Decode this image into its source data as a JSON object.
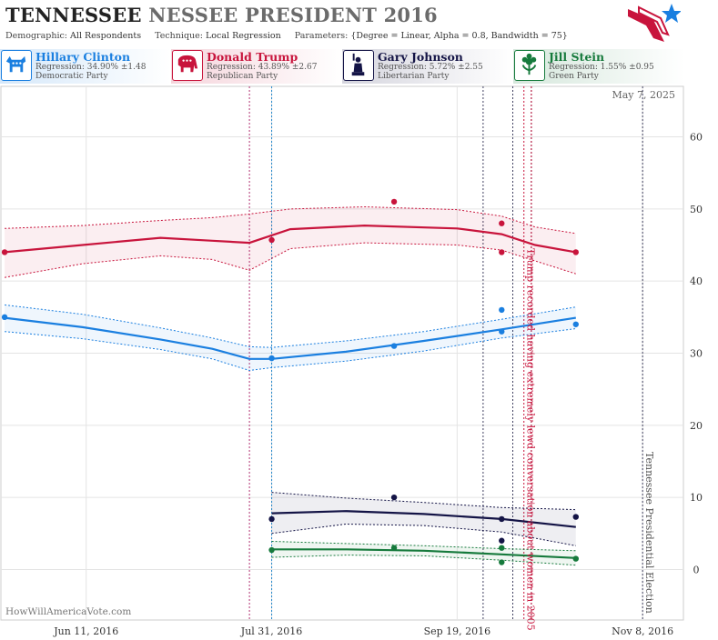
{
  "header": {
    "title_main": "TENNESSEE",
    "title_rest": "NESSEE PRESIDENT 2016",
    "demographic_label": "Demographic:",
    "demographic_value": "All Respondents",
    "technique_label": "Technique:",
    "technique_value": "Local Regression",
    "parameters_label": "Parameters:",
    "parameters_value": "{Degree = Linear, Alpha = 0.8, Bandwidth = 75}"
  },
  "candidates": [
    {
      "name": "Hillary Clinton",
      "regression": "Regression: 34.90% ±1.48",
      "party": "Democratic Party",
      "color": "#1a7fe0",
      "icon": "donkey-icon"
    },
    {
      "name": "Donald Trump",
      "regression": "Regression: 43.89% ±2.67",
      "party": "Republican Party",
      "color": "#c8143c",
      "icon": "elephant-icon"
    },
    {
      "name": "Gary Johnson",
      "regression": "Regression: 5.72% ±2.55",
      "party": "Libertarian Party",
      "color": "#141446",
      "icon": "liberty-icon"
    },
    {
      "name": "Jill Stein",
      "regression": "Regression: 1.55% ±0.95",
      "party": "Green Party",
      "color": "#167a3c",
      "icon": "flower-icon"
    }
  ],
  "watermark": "HowWillAmericaVote.com",
  "chart_data": {
    "type": "line",
    "date_label": "May 7, 2025",
    "x_ticks": [
      "Jun 11, 2016",
      "Jul 31, 2016",
      "Sep 19, 2016",
      "Nov 8, 2016"
    ],
    "x_ticks_dates": [
      "2016-06-11",
      "2016-07-31",
      "2016-09-19",
      "2016-11-08"
    ],
    "xlim": [
      "2016-05-19",
      "2016-11-19"
    ],
    "y_ticks": [
      0,
      10,
      20,
      30,
      40,
      50,
      60
    ],
    "ylim": [
      -7,
      67
    ],
    "y_axis_side": "right",
    "grid": true,
    "annotations": [
      {
        "text": "Trump recorded having extremely lewd conversation about women in 2005",
        "date": "2016-10-07",
        "color": "#c8143c"
      },
      {
        "text": "Tennessee Presidential Election",
        "date": "2016-11-08",
        "color": "#555555"
      }
    ],
    "event_lines": [
      {
        "date": "2016-07-25",
        "color": "#b03070"
      },
      {
        "date": "2016-07-31",
        "color": "#2288cc"
      },
      {
        "date": "2016-09-26",
        "color": "#404060"
      },
      {
        "date": "2016-10-04",
        "color": "#404060"
      },
      {
        "date": "2016-10-07",
        "color": "#c8143c"
      },
      {
        "date": "2016-10-09",
        "color": "#404060"
      },
      {
        "date": "2016-10-09",
        "color": "#c8143c"
      },
      {
        "date": "2016-11-08",
        "color": "#404060"
      }
    ],
    "series": [
      {
        "name": "Hillary Clinton",
        "color": "#1a7fe0",
        "points": [
          [
            "2016-05-20",
            35
          ],
          [
            "2016-07-31",
            29.3
          ],
          [
            "2016-09-02",
            31
          ],
          [
            "2016-10-01",
            36
          ],
          [
            "2016-10-01",
            33
          ],
          [
            "2016-10-21",
            34
          ]
        ],
        "trend": [
          [
            "2016-05-20",
            34.9
          ],
          [
            "2016-06-10",
            33.6
          ],
          [
            "2016-07-01",
            31.9
          ],
          [
            "2016-07-15",
            30.6
          ],
          [
            "2016-07-25",
            29.2
          ],
          [
            "2016-07-31",
            29.2
          ],
          [
            "2016-08-20",
            30.2
          ],
          [
            "2016-09-10",
            31.7
          ],
          [
            "2016-10-01",
            33.3
          ],
          [
            "2016-10-21",
            34.9
          ]
        ],
        "upper": [
          [
            "2016-05-20",
            36.7
          ],
          [
            "2016-06-10",
            35.4
          ],
          [
            "2016-07-01",
            33.5
          ],
          [
            "2016-07-15",
            32.1
          ],
          [
            "2016-07-25",
            30.9
          ],
          [
            "2016-07-31",
            30.8
          ],
          [
            "2016-08-20",
            31.7
          ],
          [
            "2016-09-10",
            33.0
          ],
          [
            "2016-10-01",
            34.7
          ],
          [
            "2016-10-21",
            36.4
          ]
        ],
        "lower": [
          [
            "2016-05-20",
            33.0
          ],
          [
            "2016-06-10",
            32.0
          ],
          [
            "2016-07-01",
            30.5
          ],
          [
            "2016-07-15",
            29.2
          ],
          [
            "2016-07-25",
            27.6
          ],
          [
            "2016-07-31",
            28.0
          ],
          [
            "2016-08-20",
            28.9
          ],
          [
            "2016-09-10",
            30.3
          ],
          [
            "2016-10-01",
            32.1
          ],
          [
            "2016-10-21",
            33.4
          ]
        ]
      },
      {
        "name": "Donald Trump",
        "color": "#c8143c",
        "points": [
          [
            "2016-05-20",
            44
          ],
          [
            "2016-07-31",
            45.7
          ],
          [
            "2016-09-02",
            51
          ],
          [
            "2016-10-01",
            48
          ],
          [
            "2016-10-01",
            44
          ],
          [
            "2016-10-21",
            44
          ]
        ],
        "trend": [
          [
            "2016-05-20",
            44
          ],
          [
            "2016-06-10",
            45
          ],
          [
            "2016-07-01",
            46
          ],
          [
            "2016-07-15",
            45.6
          ],
          [
            "2016-07-25",
            45.3
          ],
          [
            "2016-08-05",
            47.2
          ],
          [
            "2016-08-25",
            47.7
          ],
          [
            "2016-09-19",
            47.3
          ],
          [
            "2016-10-01",
            46.5
          ],
          [
            "2016-10-10",
            45
          ],
          [
            "2016-10-21",
            44
          ]
        ],
        "upper": [
          [
            "2016-05-20",
            47.3
          ],
          [
            "2016-06-10",
            47.7
          ],
          [
            "2016-07-01",
            48.4
          ],
          [
            "2016-07-15",
            48.8
          ],
          [
            "2016-07-25",
            49.3
          ],
          [
            "2016-08-05",
            50
          ],
          [
            "2016-08-25",
            50.3
          ],
          [
            "2016-09-19",
            49.9
          ],
          [
            "2016-10-01",
            49
          ],
          [
            "2016-10-10",
            47.5
          ],
          [
            "2016-10-21",
            46.6
          ]
        ],
        "lower": [
          [
            "2016-05-20",
            40.5
          ],
          [
            "2016-06-10",
            42.4
          ],
          [
            "2016-07-01",
            43.5
          ],
          [
            "2016-07-15",
            43
          ],
          [
            "2016-07-25",
            41.5
          ],
          [
            "2016-08-05",
            44.5
          ],
          [
            "2016-08-25",
            45.3
          ],
          [
            "2016-09-19",
            45
          ],
          [
            "2016-10-01",
            44.3
          ],
          [
            "2016-10-10",
            42.8
          ],
          [
            "2016-10-21",
            41
          ]
        ]
      },
      {
        "name": "Gary Johnson",
        "color": "#141446",
        "points": [
          [
            "2016-07-31",
            7
          ],
          [
            "2016-09-02",
            10
          ],
          [
            "2016-10-01",
            7
          ],
          [
            "2016-10-01",
            4
          ],
          [
            "2016-10-21",
            7.3
          ]
        ],
        "trend": [
          [
            "2016-07-31",
            7.8
          ],
          [
            "2016-08-20",
            8.1
          ],
          [
            "2016-09-10",
            7.7
          ],
          [
            "2016-10-01",
            7.0
          ],
          [
            "2016-10-21",
            5.9
          ]
        ],
        "upper": [
          [
            "2016-07-31",
            10.7
          ],
          [
            "2016-08-20",
            9.9
          ],
          [
            "2016-09-10",
            9.3
          ],
          [
            "2016-10-01",
            8.6
          ],
          [
            "2016-10-21",
            8.3
          ]
        ],
        "lower": [
          [
            "2016-07-31",
            5.0
          ],
          [
            "2016-08-20",
            6.3
          ],
          [
            "2016-09-10",
            6.1
          ],
          [
            "2016-10-01",
            5.2
          ],
          [
            "2016-10-21",
            3.3
          ]
        ]
      },
      {
        "name": "Jill Stein",
        "color": "#167a3c",
        "points": [
          [
            "2016-07-31",
            2.7
          ],
          [
            "2016-09-02",
            3
          ],
          [
            "2016-10-01",
            3
          ],
          [
            "2016-10-01",
            1
          ],
          [
            "2016-10-21",
            1.5
          ]
        ],
        "trend": [
          [
            "2016-07-31",
            2.8
          ],
          [
            "2016-08-20",
            2.8
          ],
          [
            "2016-09-10",
            2.6
          ],
          [
            "2016-10-01",
            2.1
          ],
          [
            "2016-10-21",
            1.6
          ]
        ],
        "upper": [
          [
            "2016-07-31",
            3.9
          ],
          [
            "2016-08-20",
            3.6
          ],
          [
            "2016-09-10",
            3.3
          ],
          [
            "2016-10-01",
            2.9
          ],
          [
            "2016-10-21",
            2.6
          ]
        ],
        "lower": [
          [
            "2016-07-31",
            1.7
          ],
          [
            "2016-08-20",
            2.0
          ],
          [
            "2016-09-10",
            1.9
          ],
          [
            "2016-10-01",
            1.3
          ],
          [
            "2016-10-21",
            0.6
          ]
        ]
      }
    ]
  }
}
